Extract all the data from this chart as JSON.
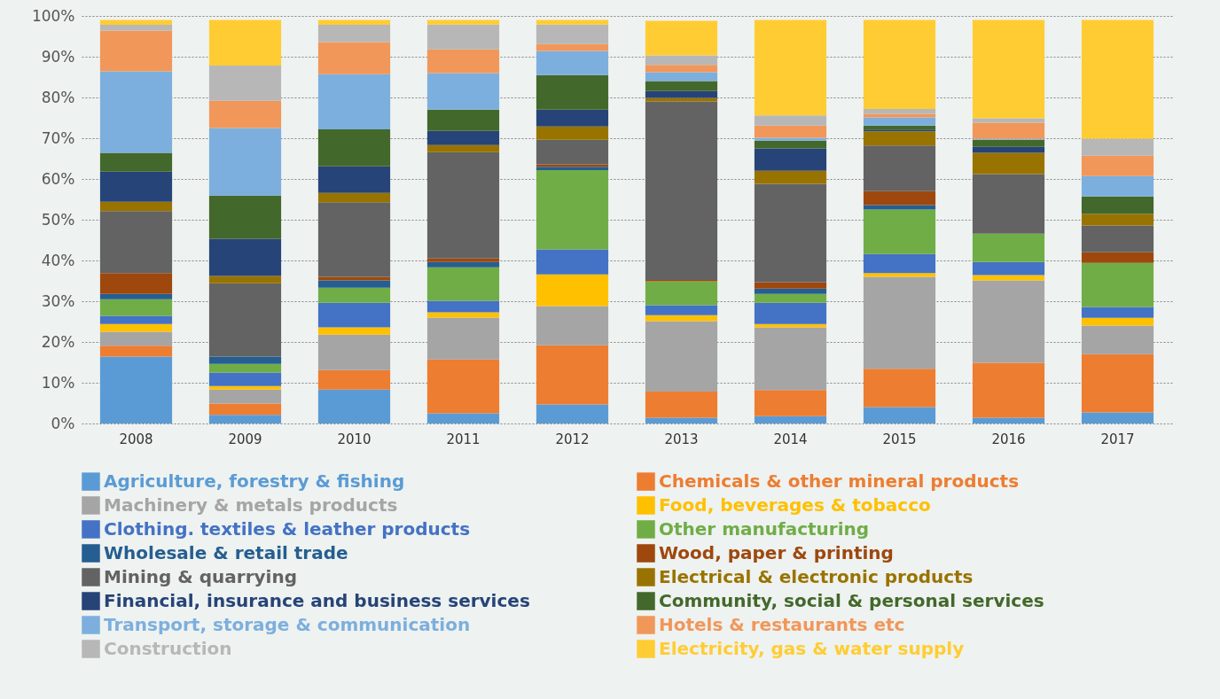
{
  "chart_data": {
    "type": "bar",
    "stacked": true,
    "categories": [
      "2008",
      "2009",
      "2010",
      "2011",
      "2012",
      "2013",
      "2014",
      "2015",
      "2016",
      "2017"
    ],
    "ylim": [
      0,
      100
    ],
    "yticks": [
      {
        "value": 0,
        "label": "0%"
      },
      {
        "value": 10,
        "label": "10%"
      },
      {
        "value": 20,
        "label": "20%"
      },
      {
        "value": 30,
        "label": "30%"
      },
      {
        "value": 40,
        "label": "40%"
      },
      {
        "value": 50,
        "label": "50%"
      },
      {
        "value": 60,
        "label": "60%"
      },
      {
        "value": 70,
        "label": "70%"
      },
      {
        "value": 80,
        "label": "80%"
      },
      {
        "value": 90,
        "label": "90%"
      },
      {
        "value": 100,
        "label": "100%"
      }
    ],
    "grid": "y",
    "legend": "bottom",
    "series": [
      {
        "name": "Agriculture, forestry & fishing",
        "color": "#5b9bd5",
        "values": [
          16.4,
          2.1,
          8.3,
          2.5,
          4.7,
          1.4,
          1.8,
          4.0,
          1.4,
          2.7
        ]
      },
      {
        "name": "Chemicals & other mineral products",
        "color": "#ed7d31",
        "values": [
          2.7,
          2.8,
          4.8,
          13.2,
          14.5,
          6.4,
          6.4,
          9.4,
          13.5,
          14.3
        ]
      },
      {
        "name": "Machinery & metals products",
        "color": "#a5a5a5",
        "values": [
          3.4,
          3.4,
          8.7,
          10.3,
          9.6,
          17.3,
          15.4,
          22.6,
          20.2,
          7.0
        ]
      },
      {
        "name": "Food, beverages & tobacco",
        "color": "#ffc000",
        "values": [
          1.9,
          0.9,
          1.8,
          1.3,
          7.8,
          1.5,
          0.8,
          0.9,
          1.3,
          1.9
        ]
      },
      {
        "name": "Clothing. textiles & leather products",
        "color": "#4472c4",
        "values": [
          2.0,
          3.3,
          6.0,
          2.8,
          6.1,
          2.4,
          5.2,
          4.7,
          3.2,
          2.7
        ]
      },
      {
        "name": "Other manufacturing",
        "color": "#70ad47",
        "values": [
          4.1,
          2.1,
          3.7,
          8.2,
          19.5,
          5.9,
          2.2,
          10.9,
          7.0,
          10.8
        ]
      },
      {
        "name": "Wholesale & retail trade",
        "color": "#255e91",
        "values": [
          1.3,
          1.8,
          1.8,
          1.3,
          0.8,
          null,
          1.3,
          1.1,
          null,
          null
        ]
      },
      {
        "name": "Wood, paper & printing",
        "color": "#9e480e",
        "values": [
          5.1,
          null,
          0.9,
          0.9,
          0.6,
          0.3,
          1.6,
          3.4,
          null,
          2.6
        ]
      },
      {
        "name": "Mining & quarrying",
        "color": "#636363",
        "values": [
          15.2,
          18.0,
          18.3,
          26.1,
          6.0,
          43.8,
          24.1,
          11.2,
          14.6,
          6.6
        ]
      },
      {
        "name": "Electrical & electronic products",
        "color": "#997300",
        "values": [
          2.3,
          1.8,
          2.3,
          1.7,
          3.3,
          0.9,
          3.2,
          3.5,
          5.2,
          2.8
        ]
      },
      {
        "name": "Financial, insurance and business services",
        "color": "#264478",
        "values": [
          7.4,
          9.1,
          6.5,
          3.5,
          4.1,
          1.7,
          5.5,
          0.4,
          1.5,
          null
        ]
      },
      {
        "name": "Community, social & personal services",
        "color": "#43682b",
        "values": [
          4.6,
          10.6,
          9.1,
          5.2,
          8.5,
          2.4,
          1.9,
          1.0,
          1.7,
          4.3
        ]
      },
      {
        "name": "Transport, storage & communication",
        "color": "#7cafdd",
        "values": [
          20.0,
          16.6,
          13.5,
          9.0,
          5.9,
          2.2,
          0.7,
          2.0,
          0.3,
          5.0
        ]
      },
      {
        "name": "Hotels & restaurants etc",
        "color": "#f1975a",
        "values": [
          10.0,
          6.7,
          7.9,
          5.8,
          1.7,
          1.8,
          3.0,
          0.9,
          3.9,
          5.0
        ]
      },
      {
        "name": "Construction",
        "color": "#b7b7b7",
        "values": [
          1.4,
          8.6,
          4.2,
          6.1,
          4.8,
          2.3,
          2.5,
          1.2,
          1.1,
          4.2
        ]
      },
      {
        "name": "Electricity, gas & water supply",
        "color": "#ffcd33",
        "values": [
          1.2,
          11.2,
          1.2,
          1.1,
          1.1,
          8.5,
          23.4,
          21.8,
          24.1,
          29.1
        ]
      }
    ]
  }
}
